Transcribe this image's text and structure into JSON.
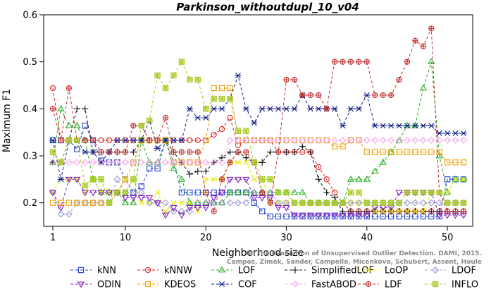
{
  "chart_data": {
    "type": "line",
    "title": "Parkinson_withoutdupl_10_v04",
    "xlabel": "Neighborhood size",
    "ylabel": "Maximum F1",
    "xlim": [
      1,
      52
    ],
    "ylim": [
      0.15,
      0.6
    ],
    "xticks": [
      "1",
      "10",
      "20",
      "30",
      "40",
      "50"
    ],
    "yticks": [
      "0.2",
      "0.3",
      "0.4",
      "0.5",
      "0.6"
    ],
    "credit": [
      "Campos, Zimek, Sander, Campello, Micenkova, Schubert, Assent, Houle",
      "On the Evaluation of Unsupervised Outlier Detection. DAMI, 2015."
    ],
    "grid": false,
    "legend_position": "bottom",
    "x": [
      1,
      2,
      3,
      4,
      5,
      6,
      7,
      8,
      9,
      10,
      11,
      12,
      13,
      14,
      15,
      16,
      17,
      18,
      19,
      20,
      21,
      22,
      23,
      24,
      25,
      26,
      27,
      28,
      29,
      30,
      31,
      32,
      33,
      34,
      35,
      36,
      37,
      38,
      39,
      40,
      41,
      42,
      43,
      44,
      45,
      46,
      47,
      48,
      49,
      50,
      51,
      52
    ],
    "series": [
      {
        "name": "kNN",
        "color": "#1f3fd6",
        "marker": "square",
        "values": [
          0.333,
          0.333,
          0.333,
          0.314,
          0.364,
          0.333,
          0.29,
          0.286,
          0.286,
          0.25,
          0.222,
          0.235,
          0.273,
          0.273,
          0.333,
          0.286,
          0.222,
          0.222,
          0.222,
          0.222,
          0.222,
          0.222,
          0.222,
          0.222,
          0.222,
          0.2,
          0.182,
          0.171,
          0.171,
          0.171,
          0.171,
          0.171,
          0.171,
          0.171,
          0.171,
          0.171,
          0.171,
          0.171,
          0.171,
          0.171,
          0.171,
          0.171,
          0.171,
          0.171,
          0.171,
          0.171,
          0.171,
          0.171,
          0.171,
          0.25,
          0.25,
          0.25
        ]
      },
      {
        "name": "kNNW",
        "color": "#e02020",
        "marker": "circle",
        "values": [
          0.444,
          0.333,
          0.333,
          0.333,
          0.333,
          0.333,
          0.333,
          0.333,
          0.333,
          0.333,
          0.333,
          0.333,
          0.333,
          0.333,
          0.333,
          0.333,
          0.333,
          0.333,
          0.333,
          0.333,
          0.345,
          0.357,
          0.381,
          0.323,
          0.333,
          0.333,
          0.333,
          0.333,
          0.308,
          0.308,
          0.308,
          0.308,
          0.308,
          0.276,
          0.25,
          0.222,
          0.2,
          0.182,
          0.182,
          0.182,
          0.182,
          0.182,
          0.182,
          0.182,
          0.182,
          0.182,
          0.182,
          0.182,
          0.182,
          0.182,
          0.182,
          0.182
        ]
      },
      {
        "name": "LOF",
        "color": "#22b022",
        "marker": "triangle",
        "values": [
          0.286,
          0.4,
          0.364,
          0.364,
          0.333,
          0.25,
          0.222,
          0.222,
          0.222,
          0.2,
          0.2,
          0.333,
          0.286,
          0.286,
          0.333,
          0.273,
          0.25,
          0.2,
          0.2,
          0.2,
          0.2,
          0.2,
          0.222,
          0.222,
          0.222,
          0.222,
          0.222,
          0.222,
          0.222,
          0.222,
          0.222,
          0.222,
          0.2,
          0.2,
          0.2,
          0.2,
          0.2,
          0.25,
          0.25,
          0.25,
          0.267,
          0.286,
          0.308,
          0.333,
          0.364,
          0.364,
          0.444,
          0.5,
          0.3,
          0.222,
          0.25,
          0.25
        ]
      },
      {
        "name": "SimplifiedLOF",
        "color": "#111111",
        "marker": "plus",
        "values": [
          0.286,
          0.286,
          0.333,
          0.4,
          0.4,
          0.308,
          0.308,
          0.308,
          0.308,
          0.308,
          0.308,
          0.333,
          0.333,
          0.333,
          0.333,
          0.308,
          0.286,
          0.261,
          0.267,
          0.267,
          0.286,
          0.296,
          0.308,
          0.308,
          0.296,
          0.286,
          0.286,
          0.308,
          0.308,
          0.308,
          0.308,
          0.32,
          0.308,
          0.25,
          0.222,
          0.211,
          0.182,
          0.182,
          0.182,
          0.182,
          0.182,
          0.182,
          0.182,
          0.182,
          0.182,
          0.182,
          0.182,
          0.182,
          0.182,
          0.182,
          0.182,
          0.182
        ]
      },
      {
        "name": "LoOP",
        "color": "#e8e800",
        "marker": "x",
        "values": [
          0.222,
          0.25,
          0.25,
          0.25,
          0.222,
          0.25,
          0.222,
          0.222,
          0.222,
          0.25,
          0.25,
          0.2,
          0.2,
          0.222,
          0.182,
          0.2,
          0.2,
          0.2,
          0.182,
          0.25,
          0.25,
          0.25,
          0.286,
          0.286,
          0.286,
          0.25,
          0.25,
          0.2,
          0.2,
          0.2,
          0.2,
          0.2,
          0.2,
          0.2,
          0.2,
          0.2,
          0.2,
          0.2,
          0.2,
          0.2,
          0.182,
          0.182,
          0.182,
          0.182,
          0.182,
          0.182,
          0.182,
          0.222,
          0.222,
          0.222,
          0.25,
          0.25
        ]
      },
      {
        "name": "LDOF",
        "color": "#9a9ad0",
        "marker": "diamond",
        "values": [
          0.222,
          0.176,
          0.176,
          0.2,
          0.2,
          0.2,
          0.2,
          0.2,
          0.25,
          0.222,
          0.222,
          0.222,
          0.2,
          0.2,
          0.2,
          0.182,
          0.182,
          0.182,
          0.2,
          0.2,
          0.2,
          0.2,
          0.2,
          0.2,
          0.2,
          0.222,
          0.222,
          0.222,
          0.2,
          0.2,
          0.2,
          0.2,
          0.2,
          0.2,
          0.2,
          0.2,
          0.2,
          0.2,
          0.2,
          0.2,
          0.2,
          0.2,
          0.2,
          0.2,
          0.2,
          0.2,
          0.2,
          0.2,
          0.2,
          0.2,
          0.2,
          0.2
        ]
      },
      {
        "name": "ODIN",
        "color": "#8020c0",
        "marker": "down-triangle",
        "values": [
          0.222,
          0.19,
          0.25,
          0.25,
          0.222,
          0.222,
          0.222,
          0.222,
          0.222,
          0.211,
          0.211,
          0.211,
          0.211,
          0.2,
          0.174,
          0.19,
          0.174,
          0.19,
          0.19,
          0.19,
          0.211,
          0.222,
          0.25,
          0.25,
          0.25,
          0.211,
          0.211,
          0.211,
          0.19,
          0.19,
          0.174,
          0.174,
          0.174,
          0.174,
          0.174,
          0.174,
          0.174,
          0.174,
          0.174,
          0.174,
          0.19,
          0.19,
          0.19,
          0.222,
          0.222,
          0.222,
          0.222,
          0.222,
          0.174,
          0.174,
          0.174,
          0.174
        ]
      },
      {
        "name": "KDEOS",
        "color": "#f0a000",
        "marker": "square",
        "values": [
          0.2,
          0.2,
          0.2,
          0.2,
          0.2,
          0.2,
          0.2,
          0.2,
          0.222,
          0.25,
          0.286,
          0.333,
          0.333,
          0.333,
          0.333,
          0.286,
          0.286,
          0.286,
          0.286,
          0.333,
          0.444,
          0.444,
          0.444,
          0.333,
          0.333,
          0.333,
          0.333,
          0.333,
          0.333,
          0.333,
          0.333,
          0.333,
          0.333,
          0.333,
          0.333,
          0.32,
          0.32,
          0.333,
          0.333,
          0.308,
          0.308,
          0.308,
          0.308,
          0.308,
          0.308,
          0.308,
          0.308,
          0.308,
          0.308,
          0.286,
          0.286,
          0.286
        ]
      },
      {
        "name": "COF",
        "color": "#10208a",
        "marker": "asterisk",
        "values": [
          0.333,
          0.25,
          0.333,
          0.333,
          0.308,
          0.308,
          0.286,
          0.308,
          0.333,
          0.333,
          0.333,
          0.333,
          0.375,
          0.316,
          0.333,
          0.333,
          0.333,
          0.4,
          0.381,
          0.381,
          0.4,
          0.4,
          0.421,
          0.471,
          0.4,
          0.37,
          0.4,
          0.4,
          0.4,
          0.4,
          0.4,
          0.429,
          0.4,
          0.4,
          0.4,
          0.4,
          0.364,
          0.4,
          0.4,
          0.429,
          0.364,
          0.364,
          0.364,
          0.364,
          0.364,
          0.364,
          0.364,
          0.364,
          0.348,
          0.348,
          0.348,
          0.348
        ]
      },
      {
        "name": "FastABOD",
        "color": "#f5a8e8",
        "marker": "diamond",
        "values": [
          0.286,
          0.286,
          0.286,
          0.286,
          0.286,
          0.286,
          0.286,
          0.286,
          0.286,
          0.286,
          0.286,
          0.286,
          0.286,
          0.286,
          0.286,
          0.286,
          0.286,
          0.286,
          0.286,
          0.286,
          0.286,
          0.286,
          0.333,
          0.333,
          0.333,
          0.333,
          0.333,
          0.333,
          0.333,
          0.333,
          0.333,
          0.333,
          0.333,
          0.333,
          0.333,
          0.333,
          0.333,
          0.333,
          0.333,
          0.333,
          0.333,
          0.333,
          0.333,
          0.333,
          0.333,
          0.333,
          0.333,
          0.333,
          0.333,
          0.333,
          0.333,
          0.333
        ]
      },
      {
        "name": "LDF",
        "color": "#c03030",
        "marker": "circle-plus",
        "values": [
          0.4,
          0.333,
          0.444,
          0.333,
          0.333,
          0.333,
          0.308,
          0.308,
          0.308,
          0.308,
          0.364,
          0.364,
          0.333,
          0.333,
          0.381,
          0.308,
          0.308,
          0.308,
          0.308,
          0.222,
          0.182,
          0.25,
          0.286,
          0.308,
          0.308,
          0.286,
          0.222,
          0.2,
          0.308,
          0.462,
          0.462,
          0.429,
          0.429,
          0.429,
          0.4,
          0.5,
          0.5,
          0.5,
          0.5,
          0.5,
          0.429,
          0.429,
          0.429,
          0.462,
          0.5,
          0.545,
          0.533,
          0.571,
          0.222,
          0.182,
          0.182,
          0.182
        ]
      },
      {
        "name": "INFLO",
        "color": "#a8cc20",
        "marker": "star",
        "values": [
          0.308,
          0.286,
          0.333,
          0.333,
          0.237,
          0.25,
          0.25,
          0.2,
          0.222,
          0.222,
          0.25,
          0.364,
          0.375,
          0.471,
          0.444,
          0.471,
          0.5,
          0.462,
          0.462,
          0.4,
          0.421,
          0.421,
          0.421,
          0.353,
          0.353,
          0.286,
          0.25,
          0.25,
          0.222,
          0.222,
          0.2,
          0.2,
          0.2,
          0.2,
          0.2,
          0.2,
          0.2,
          0.222,
          0.222,
          0.2,
          0.2,
          0.2,
          0.2,
          0.2,
          0.222,
          0.222,
          0.222,
          0.222,
          0.222,
          0.2,
          0.2,
          0.2
        ]
      }
    ]
  }
}
